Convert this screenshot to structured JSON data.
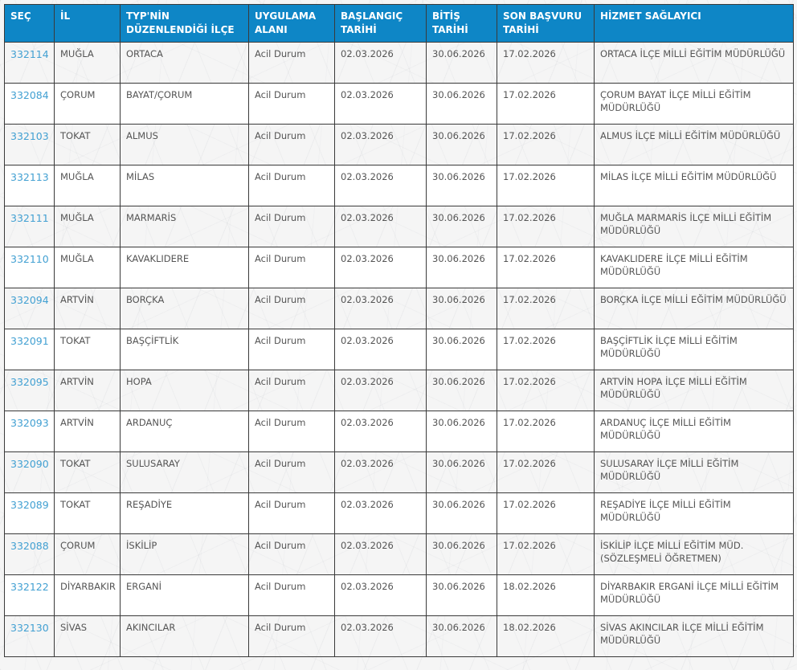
{
  "colors": {
    "header_background": "#0e86c6",
    "header_text": "#ffffff",
    "link_blue": "#42a0d2",
    "body_text": "#555555",
    "grid_border": "#3a3a3a",
    "row_white": "#ffffff",
    "page_background": "#f5f5f5"
  },
  "table": {
    "application_area_value": "Acil Durum",
    "columns": [
      {
        "key": "sec",
        "label": "SEÇ"
      },
      {
        "key": "il",
        "label": "İL"
      },
      {
        "key": "ilce",
        "label": "TYP'NİN\nDÜZENLENDİĞİ İLÇE"
      },
      {
        "key": "alan",
        "label": "UYGULAMA\nALANI"
      },
      {
        "key": "baslangic",
        "label": "BAŞLANGIÇ\nTARİHİ"
      },
      {
        "key": "bitis",
        "label": "BİTİŞ\nTARİHİ"
      },
      {
        "key": "son_basvuru",
        "label": "SON BAŞVURU\nTARİHİ"
      },
      {
        "key": "hizmet_saglayici",
        "label": "HİZMET SAĞLAYICI"
      }
    ],
    "rows": [
      {
        "sec": "332114",
        "il": "MUĞLA",
        "ilce": "ORTACA",
        "alan": "Acil Durum",
        "baslangic": "02.03.2026",
        "bitis": "30.06.2026",
        "son_basvuru": "17.02.2026",
        "hizmet_saglayici": "ORTACA İLÇE MİLLİ EĞİTİM MÜDÜRLÜĞÜ"
      },
      {
        "sec": "332084",
        "il": "ÇORUM",
        "ilce": "BAYAT/ÇORUM",
        "alan": "Acil Durum",
        "baslangic": "02.03.2026",
        "bitis": "30.06.2026",
        "son_basvuru": "17.02.2026",
        "hizmet_saglayici": "ÇORUM BAYAT İLÇE MİLLİ EĞİTİM\nMÜDÜRLÜĞÜ"
      },
      {
        "sec": "332103",
        "il": "TOKAT",
        "ilce": "ALMUS",
        "alan": "Acil Durum",
        "baslangic": "02.03.2026",
        "bitis": "30.06.2026",
        "son_basvuru": "17.02.2026",
        "hizmet_saglayici": "ALMUS İLÇE MİLLİ EĞİTİM MÜDÜRLÜĞÜ"
      },
      {
        "sec": "332113",
        "il": "MUĞLA",
        "ilce": "MİLAS",
        "alan": "Acil Durum",
        "baslangic": "02.03.2026",
        "bitis": "30.06.2026",
        "son_basvuru": "17.02.2026",
        "hizmet_saglayici": "MİLAS İLÇE MİLLİ EĞİTİM MÜDÜRLÜĞÜ"
      },
      {
        "sec": "332111",
        "il": "MUĞLA",
        "ilce": "MARMARİS",
        "alan": "Acil Durum",
        "baslangic": "02.03.2026",
        "bitis": "30.06.2026",
        "son_basvuru": "17.02.2026",
        "hizmet_saglayici": "MUĞLA MARMARİS İLÇE MİLLİ EĞİTİM\nMÜDÜRLÜĞÜ"
      },
      {
        "sec": "332110",
        "il": "MUĞLA",
        "ilce": "KAVAKLIDERE",
        "alan": "Acil Durum",
        "baslangic": "02.03.2026",
        "bitis": "30.06.2026",
        "son_basvuru": "17.02.2026",
        "hizmet_saglayici": "KAVAKLIDERE İLÇE MİLLİ EĞİTİM\nMÜDÜRLÜĞÜ"
      },
      {
        "sec": "332094",
        "il": "ARTVİN",
        "ilce": "BORÇKA",
        "alan": "Acil Durum",
        "baslangic": "02.03.2026",
        "bitis": "30.06.2026",
        "son_basvuru": "17.02.2026",
        "hizmet_saglayici": "BORÇKA İLÇE MİLLİ EĞİTİM MÜDÜRLÜĞÜ"
      },
      {
        "sec": "332091",
        "il": "TOKAT",
        "ilce": "BAŞÇİFTLİK",
        "alan": "Acil Durum",
        "baslangic": "02.03.2026",
        "bitis": "30.06.2026",
        "son_basvuru": "17.02.2026",
        "hizmet_saglayici": "BAŞÇİFTLİK İLÇE MİLLİ EĞİTİM\nMÜDÜRLÜĞÜ"
      },
      {
        "sec": "332095",
        "il": "ARTVİN",
        "ilce": "HOPA",
        "alan": "Acil Durum",
        "baslangic": "02.03.2026",
        "bitis": "30.06.2026",
        "son_basvuru": "17.02.2026",
        "hizmet_saglayici": "ARTVİN HOPA İLÇE MİLLİ EĞİTİM\nMÜDÜRLÜĞÜ"
      },
      {
        "sec": "332093",
        "il": "ARTVİN",
        "ilce": "ARDANUÇ",
        "alan": "Acil Durum",
        "baslangic": "02.03.2026",
        "bitis": "30.06.2026",
        "son_basvuru": "17.02.2026",
        "hizmet_saglayici": "ARDANUÇ İLÇE MİLLİ EĞİTİM\nMÜDÜRLÜĞÜ"
      },
      {
        "sec": "332090",
        "il": "TOKAT",
        "ilce": "SULUSARAY",
        "alan": "Acil Durum",
        "baslangic": "02.03.2026",
        "bitis": "30.06.2026",
        "son_basvuru": "17.02.2026",
        "hizmet_saglayici": "SULUSARAY İLÇE MİLLİ EĞİTİM\nMÜDÜRLÜĞÜ"
      },
      {
        "sec": "332089",
        "il": "TOKAT",
        "ilce": "REŞADİYE",
        "alan": "Acil Durum",
        "baslangic": "02.03.2026",
        "bitis": "30.06.2026",
        "son_basvuru": "17.02.2026",
        "hizmet_saglayici": "REŞADİYE İLÇE MİLLİ EĞİTİM\nMÜDÜRLÜĞÜ"
      },
      {
        "sec": "332088",
        "il": "ÇORUM",
        "ilce": "İSKİLİP",
        "alan": "Acil Durum",
        "baslangic": "02.03.2026",
        "bitis": "30.06.2026",
        "son_basvuru": "17.02.2026",
        "hizmet_saglayici": "İSKİLİP İLÇE MİLLİ EĞİTİM MÜD.\n(SÖZLEŞMELİ ÖĞRETMEN)"
      },
      {
        "sec": "332122",
        "il": "DİYARBAKIR",
        "ilce": "ERGANİ",
        "alan": "Acil Durum",
        "baslangic": "02.03.2026",
        "bitis": "30.06.2026",
        "son_basvuru": "18.02.2026",
        "hizmet_saglayici": "DİYARBAKIR ERGANİ İLÇE MİLLİ EĞİTİM\nMÜDÜRLÜĞÜ"
      },
      {
        "sec": "332130",
        "il": "SİVAS",
        "ilce": "AKINCILAR",
        "alan": "Acil Durum",
        "baslangic": "02.03.2026",
        "bitis": "30.06.2026",
        "son_basvuru": "18.02.2026",
        "hizmet_saglayici": "SİVAS AKINCILAR İLÇE MİLLİ EĞİTİM\nMÜDÜRLÜĞÜ"
      }
    ]
  }
}
